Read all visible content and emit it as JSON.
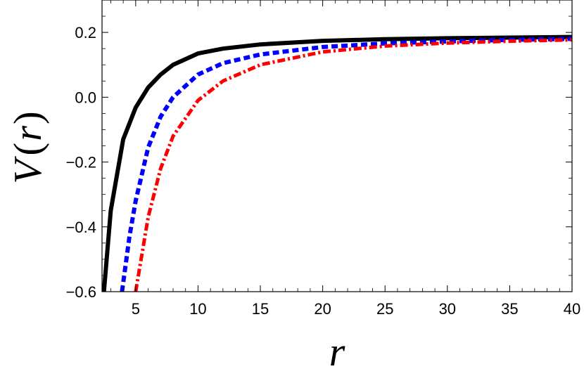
{
  "chart_data": {
    "type": "line",
    "xlabel": "r",
    "ylabel": "V(r)",
    "ylabel_parts": {
      "V": "V",
      "open": "(",
      "r": "r",
      "close": ")"
    },
    "xlim": [
      2.3,
      40
    ],
    "ylim": [
      -0.6,
      0.3
    ],
    "xticks": [
      5,
      10,
      15,
      20,
      25,
      30,
      35,
      40
    ],
    "xtick_labels": [
      "5",
      "10",
      "15",
      "20",
      "25",
      "30",
      "35",
      "40"
    ],
    "yticks": [
      -0.6,
      -0.4,
      -0.2,
      0.0,
      0.2
    ],
    "ytick_labels": [
      "−0.6",
      "−0.4",
      "−0.2",
      "0.0",
      "0.2"
    ],
    "grid": false,
    "series": [
      {
        "color": "#000000",
        "style": "solid",
        "x": [
          2.45,
          3,
          4,
          5,
          6,
          7,
          8,
          10,
          12,
          15,
          20,
          25,
          30,
          35,
          40
        ],
        "y": [
          -0.6,
          -0.35,
          -0.13,
          -0.032,
          0.03,
          0.07,
          0.1,
          0.135,
          0.15,
          0.163,
          0.174,
          0.179,
          0.182,
          0.184,
          0.186
        ]
      },
      {
        "color": "#0000ff",
        "style": "dotted",
        "x": [
          3.9,
          4.5,
          5,
          6,
          7,
          8,
          10,
          12,
          15,
          20,
          25,
          30,
          35,
          40
        ],
        "y": [
          -0.6,
          -0.43,
          -0.32,
          -0.155,
          -0.06,
          0.0,
          0.07,
          0.105,
          0.132,
          0.155,
          0.166,
          0.172,
          0.177,
          0.18
        ]
      },
      {
        "color": "#ff0000",
        "style": "dash-dot",
        "x": [
          5.0,
          6,
          7,
          8,
          10,
          12,
          15,
          20,
          25,
          30,
          35,
          40
        ],
        "y": [
          -0.6,
          -0.37,
          -0.22,
          -0.12,
          -0.01,
          0.05,
          0.1,
          0.14,
          0.158,
          0.167,
          0.173,
          0.177
        ]
      }
    ]
  }
}
